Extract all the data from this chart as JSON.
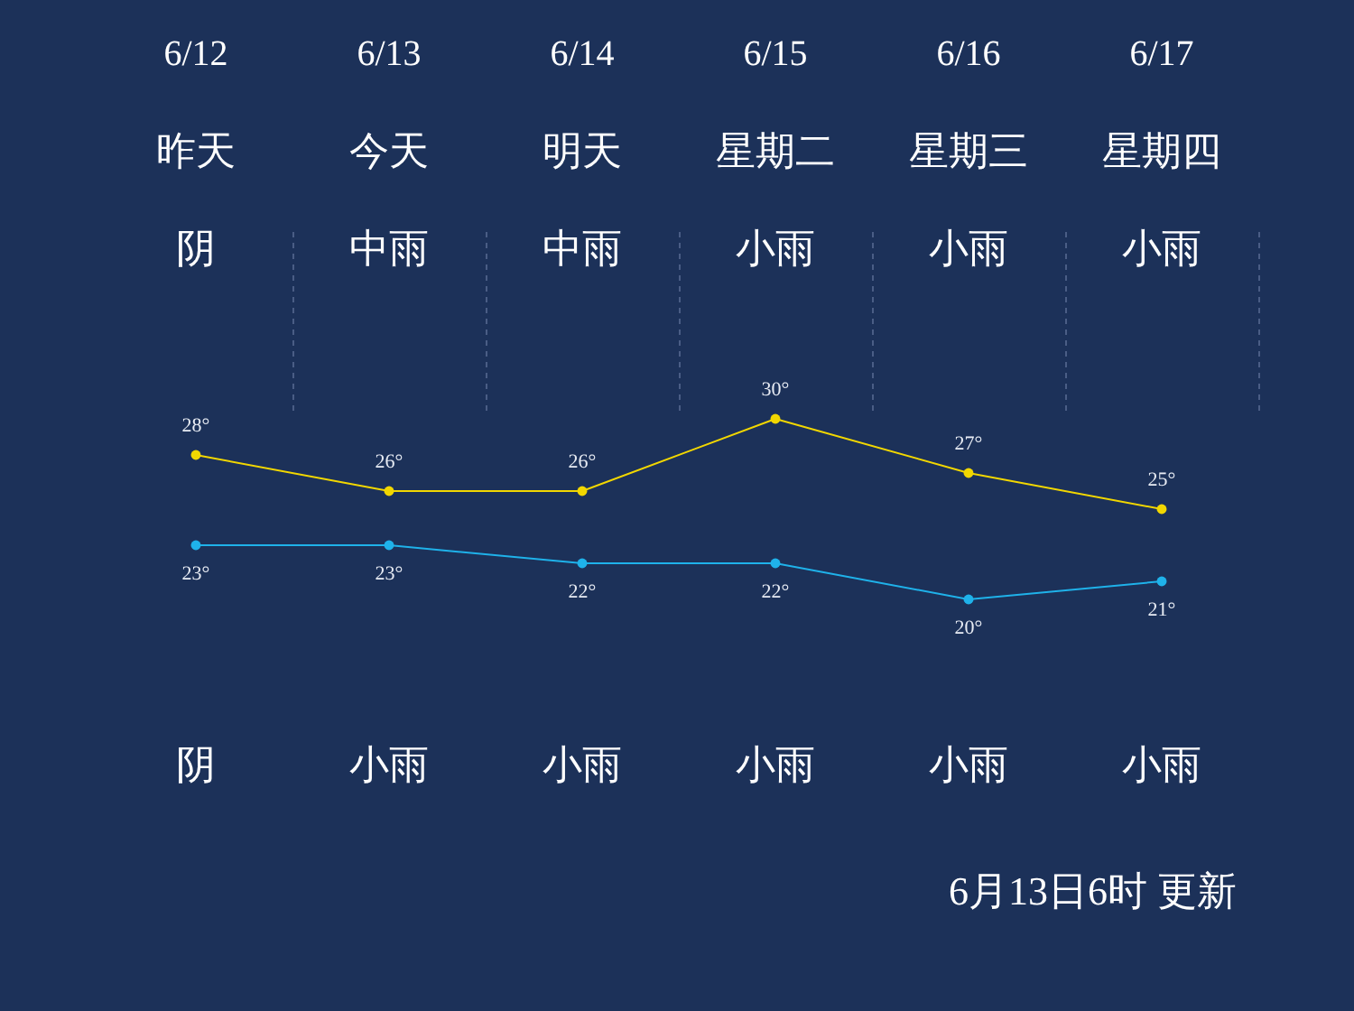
{
  "chart_data": {
    "type": "line",
    "categories": [
      "6/12",
      "6/13",
      "6/14",
      "6/15",
      "6/16",
      "6/17"
    ],
    "series": [
      {
        "color": "#f2d700",
        "values": [
          28,
          26,
          26,
          30,
          27,
          25
        ],
        "value_labels": [
          "28°",
          "26°",
          "26°",
          "30°",
          "27°",
          "25°"
        ]
      },
      {
        "color": "#1fb2ea",
        "values": [
          23,
          23,
          22,
          22,
          20,
          21
        ],
        "value_labels": [
          "23°",
          "23°",
          "22°",
          "22°",
          "20°",
          "21°"
        ]
      }
    ],
    "marker": "circle",
    "grid": "x",
    "annotations": [
      "昨天",
      "今天",
      "明天",
      "星期二",
      "星期三",
      "星期四",
      "阴",
      "中雨",
      "中雨",
      "小雨",
      "小雨",
      "小雨",
      "阴",
      "小雨",
      "小雨",
      "小雨",
      "小雨",
      "小雨",
      "6月13日6时 更新"
    ]
  }
}
